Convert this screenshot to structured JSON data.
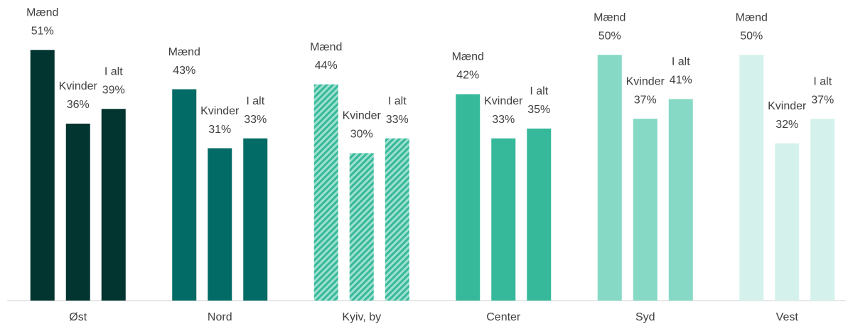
{
  "chart_data": {
    "type": "grouped_bar",
    "categories": [
      "Øst",
      "Nord",
      "Kyiv, by",
      "Center",
      "Syd",
      "Vest"
    ],
    "category_colors": [
      "#023430",
      "#036b65",
      "#36b99a",
      "#36b99a",
      "#86d9c5",
      "#d4f2eb"
    ],
    "category_hatched": [
      false,
      false,
      true,
      false,
      false,
      false
    ],
    "series": [
      {
        "name": "Mænd",
        "values": [
          51,
          43,
          44,
          42,
          50,
          50
        ],
        "value_labels": [
          "51%",
          "43%",
          "44%",
          "42%",
          "50%",
          "50%"
        ]
      },
      {
        "name": "Kvinder",
        "values": [
          36,
          31,
          30,
          33,
          37,
          32
        ],
        "value_labels": [
          "36%",
          "31%",
          "30%",
          "33%",
          "37%",
          "32%"
        ]
      },
      {
        "name": "I alt",
        "values": [
          39,
          33,
          33,
          35,
          41,
          37
        ],
        "value_labels": [
          "39%",
          "33%",
          "33%",
          "35%",
          "41%",
          "37%"
        ]
      }
    ],
    "ylim": [
      0,
      60
    ]
  }
}
